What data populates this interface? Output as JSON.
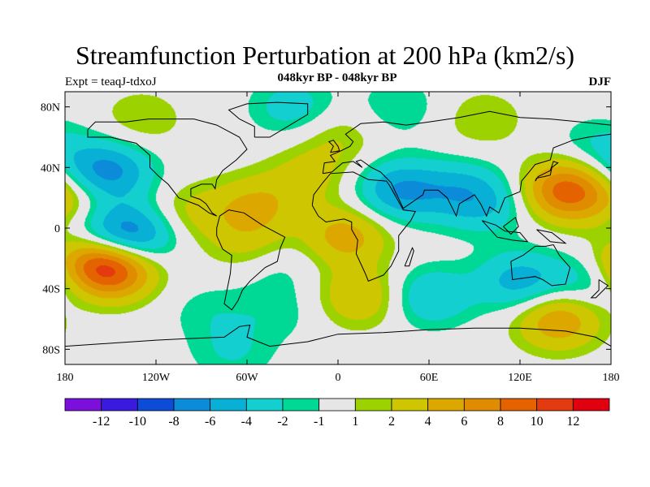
{
  "chart_data": {
    "type": "filled-contour-map",
    "title": "Streamfunction Perturbation at 200 hPa (km2/s)",
    "subtitle": "048kyr BP - 048kyr BP",
    "left_label": "Expt = teaqJ-tdxoJ",
    "right_label": "DJF",
    "lon_range": [
      -180,
      180
    ],
    "lat_range": [
      -90,
      90
    ],
    "x_ticks": [
      {
        "value": -180,
        "label": "180"
      },
      {
        "value": -120,
        "label": "120W"
      },
      {
        "value": -60,
        "label": "60W"
      },
      {
        "value": 0,
        "label": "0"
      },
      {
        "value": 60,
        "label": "60E"
      },
      {
        "value": 120,
        "label": "120E"
      },
      {
        "value": 180,
        "label": "180"
      }
    ],
    "y_ticks": [
      {
        "value": 80,
        "label": "80N"
      },
      {
        "value": 40,
        "label": "40N"
      },
      {
        "value": 0,
        "label": "0"
      },
      {
        "value": -40,
        "label": "40S"
      },
      {
        "value": -80,
        "label": "80S"
      }
    ],
    "colorbar": {
      "colors": [
        "#7b10dc",
        "#3a1adf",
        "#0d4cd6",
        "#0c8bd8",
        "#08b0d6",
        "#14cfcf",
        "#00d896",
        "#e6e6e6",
        "#9cd200",
        "#cdc600",
        "#dca800",
        "#e08c00",
        "#e46200",
        "#e33a10",
        "#e00010"
      ],
      "labels": [
        "-12",
        "-10",
        "-8",
        "-6",
        "-4",
        "-2",
        "-1",
        "1",
        "2",
        "4",
        "6",
        "8",
        "10",
        "12"
      ]
    },
    "anomalies": [
      {
        "lon": -150,
        "lat": -26,
        "value": 11
      },
      {
        "lon": -170,
        "lat": -20,
        "value": 3
      },
      {
        "lon": -135,
        "lat": -5,
        "value": -7
      },
      {
        "lon": -155,
        "lat": -2,
        "value": -3
      },
      {
        "lon": -150,
        "lat": 37,
        "value": -6
      },
      {
        "lon": -170,
        "lat": 38,
        "value": -2
      },
      {
        "lon": -175,
        "lat": 20,
        "value": 3
      },
      {
        "lon": -100,
        "lat": 10,
        "value": 2.5
      },
      {
        "lon": -55,
        "lat": 15,
        "value": 4
      },
      {
        "lon": -20,
        "lat": 35,
        "value": 2.5
      },
      {
        "lon": -60,
        "lat": -10,
        "value": 2.5
      },
      {
        "lon": -40,
        "lat": -25,
        "value": -1.5
      },
      {
        "lon": 5,
        "lat": -5,
        "value": 5
      },
      {
        "lon": 15,
        "lat": -45,
        "value": 4
      },
      {
        "lon": -85,
        "lat": -55,
        "value": -1.5
      },
      {
        "lon": -40,
        "lat": -55,
        "value": -1.5
      },
      {
        "lon": 60,
        "lat": -45,
        "value": -4
      },
      {
        "lon": 40,
        "lat": 25,
        "value": -6
      },
      {
        "lon": 80,
        "lat": 25,
        "value": -4
      },
      {
        "lon": 100,
        "lat": 15,
        "value": -3
      },
      {
        "lon": 120,
        "lat": -35,
        "value": -5
      },
      {
        "lon": 150,
        "lat": 25,
        "value": 9
      },
      {
        "lon": 145,
        "lat": -60,
        "value": 6
      },
      {
        "lon": 165,
        "lat": -35,
        "value": -3
      },
      {
        "lon": -30,
        "lat": 80,
        "value": -3
      },
      {
        "lon": 40,
        "lat": 80,
        "value": -2
      },
      {
        "lon": 95,
        "lat": 72,
        "value": 2
      },
      {
        "lon": -130,
        "lat": 72,
        "value": 2
      },
      {
        "lon": 170,
        "lat": 55,
        "value": -2
      },
      {
        "lon": 0,
        "lat": 60,
        "value": 2
      },
      {
        "lon": -70,
        "lat": -82,
        "value": -2
      }
    ]
  }
}
